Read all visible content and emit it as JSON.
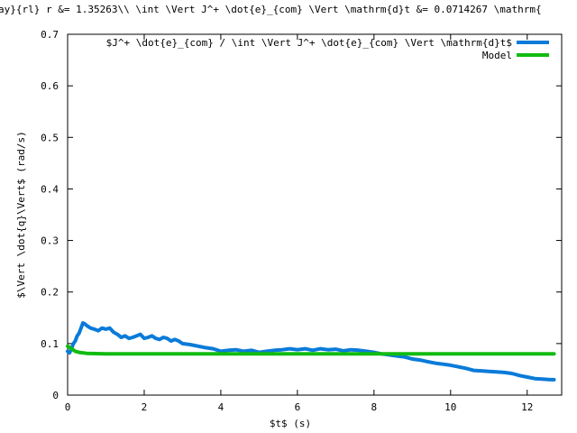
{
  "chart_data": {
    "type": "line",
    "title": "ay}{rl} r &= 1.35263\\\\ \\int \\Vert J^+ \\dot{e}_{com} \\Vert \\mathrm{d}t &=  0.0714267 \\mathrm{",
    "xlabel": "$t$ (s)",
    "ylabel": "$\\Vert \\dot{q}\\Vert$ (rad/s)",
    "xlim": [
      0,
      12.9
    ],
    "ylim": [
      0,
      0.7
    ],
    "xticks": [
      "0",
      "2",
      "4",
      "6",
      "8",
      "10",
      "12"
    ],
    "yticks": [
      "0",
      "0.1",
      "0.2",
      "0.3",
      "0.4",
      "0.5",
      "0.6",
      "0.7"
    ],
    "grid": false,
    "legend_position": "top-right",
    "series": [
      {
        "name": "$J^+ \\dot{e}_{com} / \\int \\Vert J^+ \\dot{e}_{com} \\Vert \\mathrm{d}t$",
        "color": "#0a7bd9",
        "x": [
          0.0,
          0.05,
          0.1,
          0.15,
          0.2,
          0.25,
          0.3,
          0.35,
          0.4,
          0.45,
          0.5,
          0.6,
          0.7,
          0.8,
          0.9,
          1.0,
          1.1,
          1.2,
          1.3,
          1.4,
          1.5,
          1.6,
          1.7,
          1.8,
          1.9,
          2.0,
          2.1,
          2.2,
          2.3,
          2.4,
          2.5,
          2.6,
          2.7,
          2.8,
          2.9,
          3.0,
          3.2,
          3.4,
          3.6,
          3.8,
          4.0,
          4.2,
          4.4,
          4.6,
          4.8,
          5.0,
          5.2,
          5.4,
          5.6,
          5.8,
          6.0,
          6.2,
          6.4,
          6.6,
          6.8,
          7.0,
          7.2,
          7.4,
          7.6,
          7.8,
          8.0,
          8.2,
          8.4,
          8.6,
          8.8,
          9.0,
          9.2,
          9.4,
          9.6,
          9.8,
          10.0,
          10.2,
          10.4,
          10.6,
          10.8,
          11.0,
          11.2,
          11.4,
          11.6,
          11.8,
          12.0,
          12.2,
          12.4,
          12.6,
          12.7
        ],
        "y": [
          0.085,
          0.082,
          0.09,
          0.1,
          0.105,
          0.115,
          0.12,
          0.13,
          0.14,
          0.138,
          0.135,
          0.13,
          0.128,
          0.125,
          0.13,
          0.128,
          0.13,
          0.122,
          0.118,
          0.112,
          0.115,
          0.11,
          0.112,
          0.115,
          0.118,
          0.11,
          0.112,
          0.115,
          0.11,
          0.108,
          0.112,
          0.11,
          0.105,
          0.108,
          0.105,
          0.1,
          0.098,
          0.095,
          0.092,
          0.09,
          0.085,
          0.087,
          0.088,
          0.085,
          0.087,
          0.083,
          0.085,
          0.087,
          0.088,
          0.09,
          0.088,
          0.09,
          0.087,
          0.09,
          0.088,
          0.089,
          0.086,
          0.088,
          0.087,
          0.085,
          0.083,
          0.08,
          0.078,
          0.076,
          0.074,
          0.07,
          0.068,
          0.065,
          0.062,
          0.06,
          0.058,
          0.055,
          0.052,
          0.048,
          0.047,
          0.046,
          0.045,
          0.044,
          0.042,
          0.038,
          0.035,
          0.032,
          0.031,
          0.03,
          0.03
        ]
      },
      {
        "name": "Model",
        "color": "#11bb11",
        "x": [
          0.0,
          0.1,
          0.2,
          0.3,
          0.5,
          1.0,
          2.0,
          4.0,
          6.0,
          8.0,
          10.0,
          12.0,
          12.7
        ],
        "y": [
          0.095,
          0.09,
          0.085,
          0.083,
          0.081,
          0.08,
          0.08,
          0.08,
          0.08,
          0.08,
          0.08,
          0.08,
          0.08
        ]
      }
    ]
  }
}
